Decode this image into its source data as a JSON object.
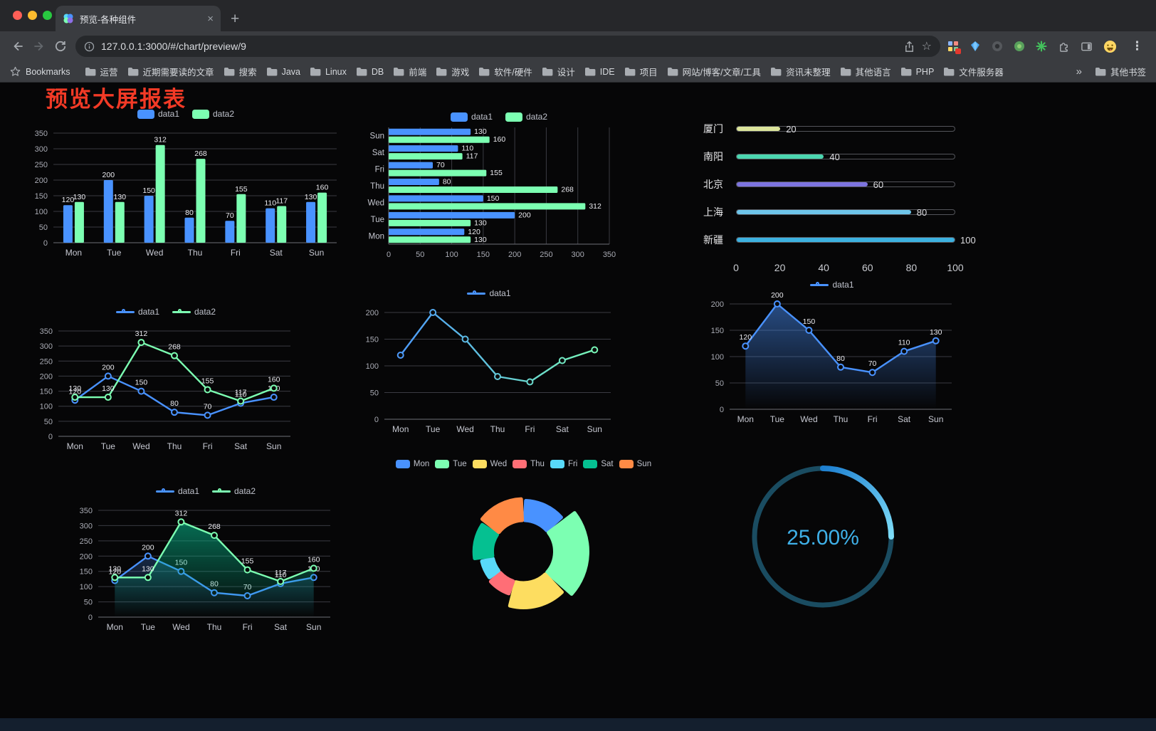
{
  "browser": {
    "tab_title": "预览-各种组件",
    "url": "127.0.0.1:3000/#/chart/preview/9",
    "new_tab_label": "+",
    "close_tab_label": "×",
    "menu_label": "⋮",
    "bookmarks_bar": {
      "label": "Bookmarks",
      "folders": [
        "运营",
        "近期需要读的文章",
        "搜索",
        "Java",
        "Linux",
        "DB",
        "前端",
        "游戏",
        "软件/硬件",
        "设计",
        "IDE",
        "项目",
        "网站/博客/文章/工具",
        "资讯未整理",
        "其他语言",
        "PHP",
        "文件服务器"
      ],
      "overflow": "»",
      "other_bookmarks": "其他书签"
    }
  },
  "page": {
    "title": "预览大屏报表"
  },
  "chart_data": [
    {
      "id": "bar-grouped",
      "type": "bar",
      "categories": [
        "Mon",
        "Tue",
        "Wed",
        "Thu",
        "Fri",
        "Sat",
        "Sun"
      ],
      "series": [
        {
          "name": "data1",
          "color": "#4992ff",
          "values": [
            120,
            200,
            150,
            80,
            70,
            110,
            130
          ]
        },
        {
          "name": "data2",
          "color": "#7cffb2",
          "values": [
            130,
            130,
            312,
            268,
            155,
            117,
            160
          ]
        }
      ],
      "ylim": [
        0,
        350
      ],
      "ytick": 50,
      "legend_icon": "rect",
      "grid": true
    },
    {
      "id": "bar-horizontal",
      "type": "hbar",
      "categories": [
        "Mon",
        "Tue",
        "Wed",
        "Thu",
        "Fri",
        "Sat",
        "Sun"
      ],
      "series": [
        {
          "name": "data1",
          "color": "#4992ff",
          "values": [
            120,
            200,
            150,
            80,
            70,
            110,
            130
          ]
        },
        {
          "name": "data2",
          "color": "#7cffb2",
          "values": [
            130,
            130,
            312,
            268,
            155,
            117,
            160
          ]
        }
      ],
      "xlim": [
        0,
        350
      ],
      "xtick": 50,
      "legend_icon": "rect",
      "grid": true
    },
    {
      "id": "progress-bars",
      "type": "progress",
      "max": 100,
      "ticks": [
        0,
        20,
        40,
        60,
        80,
        100
      ],
      "items": [
        {
          "label": "厦门",
          "value": 20,
          "color": "#dce59b"
        },
        {
          "label": "南阳",
          "value": 40,
          "color": "#4bd6b0"
        },
        {
          "label": "北京",
          "value": 60,
          "color": "#7d74df"
        },
        {
          "label": "上海",
          "value": 80,
          "color": "#6ec5ea"
        },
        {
          "label": "新疆",
          "value": 100,
          "color": "#3cb1e0"
        }
      ]
    },
    {
      "id": "line-two-series",
      "type": "line",
      "categories": [
        "Mon",
        "Tue",
        "Wed",
        "Thu",
        "Fri",
        "Sat",
        "Sun"
      ],
      "series": [
        {
          "name": "data1",
          "color": "#4992ff",
          "values": [
            120,
            200,
            150,
            80,
            70,
            110,
            130
          ],
          "labels": true
        },
        {
          "name": "data2",
          "color": "#7cffb2",
          "values": [
            130,
            130,
            312,
            268,
            155,
            117,
            160
          ],
          "labels": true
        }
      ],
      "ylim": [
        0,
        350
      ],
      "ytick": 50,
      "legend_icon": "line",
      "grid": true
    },
    {
      "id": "line-gradient",
      "type": "line",
      "categories": [
        "Mon",
        "Tue",
        "Wed",
        "Thu",
        "Fri",
        "Sat",
        "Sun"
      ],
      "series": [
        {
          "name": "data1",
          "color": "#4992ff",
          "gradient": [
            "#4992ff",
            "#7cffb2"
          ],
          "values": [
            120,
            200,
            150,
            80,
            70,
            110,
            130
          ],
          "labels": false
        }
      ],
      "ylim": [
        0,
        200
      ],
      "ytick": 50,
      "legend_icon": "line",
      "grid": true
    },
    {
      "id": "line-area-blue",
      "type": "line",
      "categories": [
        "Mon",
        "Tue",
        "Wed",
        "Thu",
        "Fri",
        "Sat",
        "Sun"
      ],
      "series": [
        {
          "name": "data1",
          "color": "#4992ff",
          "values": [
            120,
            200,
            150,
            80,
            70,
            110,
            130
          ],
          "labels": true,
          "area": true,
          "area_opacity": 0.5
        }
      ],
      "ylim": [
        0,
        200
      ],
      "ytick": 50,
      "legend_icon": "line",
      "grid": true
    },
    {
      "id": "line-area-green",
      "type": "line",
      "categories": [
        "Mon",
        "Tue",
        "Wed",
        "Thu",
        "Fri",
        "Sat",
        "Sun"
      ],
      "series": [
        {
          "name": "data1",
          "color": "#4992ff",
          "values": [
            120,
            200,
            150,
            80,
            70,
            110,
            130
          ],
          "labels": true,
          "area": true,
          "area_opacity": 0.25
        },
        {
          "name": "data2",
          "color": "#7cffb2",
          "values": [
            130,
            130,
            312,
            268,
            155,
            117,
            160
          ],
          "labels": true,
          "area": true,
          "area_color": "#05c091",
          "area_opacity": 0.55
        }
      ],
      "ylim": [
        0,
        350
      ],
      "ytick": 50,
      "legend_icon": "line",
      "grid": true
    },
    {
      "id": "rose-donut",
      "type": "pie",
      "mode": "rose",
      "inner_radius": 44,
      "items": [
        {
          "label": "Mon",
          "value": 120,
          "color": "#4992ff"
        },
        {
          "label": "Tue",
          "value": 200,
          "color": "#7cffb2"
        },
        {
          "label": "Wed",
          "value": 150,
          "color": "#fddd60"
        },
        {
          "label": "Thu",
          "value": 80,
          "color": "#ff6e76"
        },
        {
          "label": "Fri",
          "value": 70,
          "color": "#58d9f9"
        },
        {
          "label": "Sat",
          "value": 110,
          "color": "#05c091"
        },
        {
          "label": "Sun",
          "value": 130,
          "color": "#ff8a45"
        }
      ],
      "legend_icon": "rect"
    },
    {
      "id": "gauge",
      "type": "gauge",
      "value": 25,
      "max": 100,
      "display": "25.00%",
      "color_start": "#1d7fd0",
      "color_end": "#7ddcf8",
      "track_color": "#1a4c61",
      "text_color": "#3fb0e8"
    }
  ]
}
